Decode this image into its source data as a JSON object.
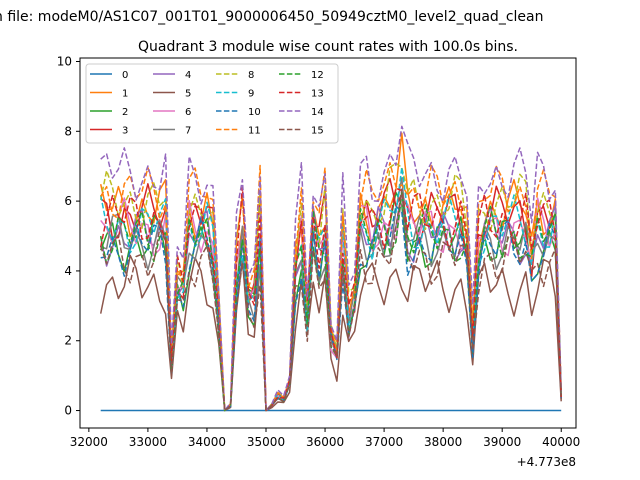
{
  "figure": {
    "suptitle": "n file: modeM0/AS1C07_001T01_9000006450_50949cztM0_level2_quad_clean",
    "offset_label": "+4.773e8"
  },
  "chart_data": {
    "type": "line",
    "title": "Quadrant 3 module wise count rates with 100.0s bins.",
    "xlabel": "",
    "ylabel": "",
    "xlim": [
      31850,
      40250
    ],
    "ylim": [
      -0.5,
      10.1
    ],
    "x_offset": 477300000,
    "xticks": [
      32000,
      33000,
      34000,
      35000,
      36000,
      37000,
      38000,
      39000,
      40000
    ],
    "yticks": [
      0,
      2,
      4,
      6,
      8,
      10
    ],
    "xtick_labels": [
      "32000",
      "33000",
      "34000",
      "35000",
      "36000",
      "37000",
      "38000",
      "39000",
      "40000"
    ],
    "ytick_labels": [
      "0",
      "2",
      "4",
      "6",
      "8",
      "10"
    ],
    "grid": false,
    "legend": "top-left, 4 columns",
    "x": [
      32200,
      32300,
      32400,
      32500,
      32600,
      32700,
      32800,
      32900,
      33000,
      33100,
      33200,
      33300,
      33400,
      33500,
      33600,
      33700,
      33800,
      33900,
      34000,
      34100,
      34200,
      34300,
      34400,
      34500,
      34600,
      34700,
      34800,
      34900,
      35000,
      35100,
      35200,
      35300,
      35400,
      35500,
      35600,
      35700,
      35800,
      35900,
      36000,
      36100,
      36200,
      36300,
      36400,
      36500,
      36600,
      36700,
      36800,
      36900,
      37000,
      37100,
      37200,
      37300,
      37400,
      37500,
      37600,
      37700,
      37800,
      37900,
      38000,
      38100,
      38200,
      38300,
      38400,
      38500,
      38600,
      38700,
      38800,
      38900,
      39000,
      39100,
      39200,
      39300,
      39400,
      39500,
      39600,
      39700,
      39800,
      39900,
      40000
    ],
    "mask": [
      1,
      1,
      1,
      1,
      1,
      1,
      1,
      1,
      1,
      1,
      1,
      1,
      0.25,
      0.7,
      0.65,
      1,
      1,
      1,
      1,
      0.9,
      0.5,
      0,
      0.03,
      0.75,
      1,
      0.6,
      0.6,
      1,
      0,
      0.03,
      0.08,
      0.06,
      0.15,
      0.75,
      0.95,
      0.5,
      1,
      0.85,
      1,
      0.4,
      0.3,
      0.9,
      0.5,
      0.6,
      1,
      1,
      0.95,
      1,
      1,
      1.05,
      1.1,
      1.2,
      1.0,
      1,
      1,
      1,
      1,
      1,
      1,
      1,
      1,
      1,
      0.9,
      0.4,
      0.9,
      1,
      1,
      1,
      1,
      1,
      1,
      1,
      1,
      0.8,
      1,
      1,
      1,
      1,
      0.08
    ],
    "series": [
      {
        "name": "0",
        "color": "#1f77b4",
        "dash": "solid",
        "base": 0,
        "phase": 0
      },
      {
        "name": "1",
        "color": "#ff7f0e",
        "dash": "solid",
        "base": 5.8,
        "phase": 1
      },
      {
        "name": "2",
        "color": "#2ca02c",
        "dash": "solid",
        "base": 4.8,
        "phase": 2
      },
      {
        "name": "3",
        "color": "#d62728",
        "dash": "solid",
        "base": 5.6,
        "phase": 3
      },
      {
        "name": "4",
        "color": "#9467bd",
        "dash": "solid",
        "base": 5.0,
        "phase": 4
      },
      {
        "name": "5",
        "color": "#8c564b",
        "dash": "solid",
        "base": 3.6,
        "phase": 5
      },
      {
        "name": "6",
        "color": "#e377c2",
        "dash": "solid",
        "base": 5.2,
        "phase": 6
      },
      {
        "name": "7",
        "color": "#7f7f7f",
        "dash": "solid",
        "base": 4.9,
        "phase": 7
      },
      {
        "name": "8",
        "color": "#bcbd22",
        "dash": "dashed",
        "base": 6.0,
        "phase": 8
      },
      {
        "name": "9",
        "color": "#17becf",
        "dash": "dashed",
        "base": 5.3,
        "phase": 9
      },
      {
        "name": "10",
        "color": "#1f77b4",
        "dash": "dashed",
        "base": 4.7,
        "phase": 10
      },
      {
        "name": "11",
        "color": "#ff7f0e",
        "dash": "dashed",
        "base": 6.2,
        "phase": 11
      },
      {
        "name": "12",
        "color": "#2ca02c",
        "dash": "dashed",
        "base": 5.0,
        "phase": 12
      },
      {
        "name": "13",
        "color": "#d62728",
        "dash": "dashed",
        "base": 5.5,
        "phase": 13
      },
      {
        "name": "14",
        "color": "#9467bd",
        "dash": "dashed",
        "base": 6.8,
        "phase": 14
      },
      {
        "name": "15",
        "color": "#8c564b",
        "dash": "dashed",
        "base": 4.4,
        "phase": 15
      }
    ]
  }
}
